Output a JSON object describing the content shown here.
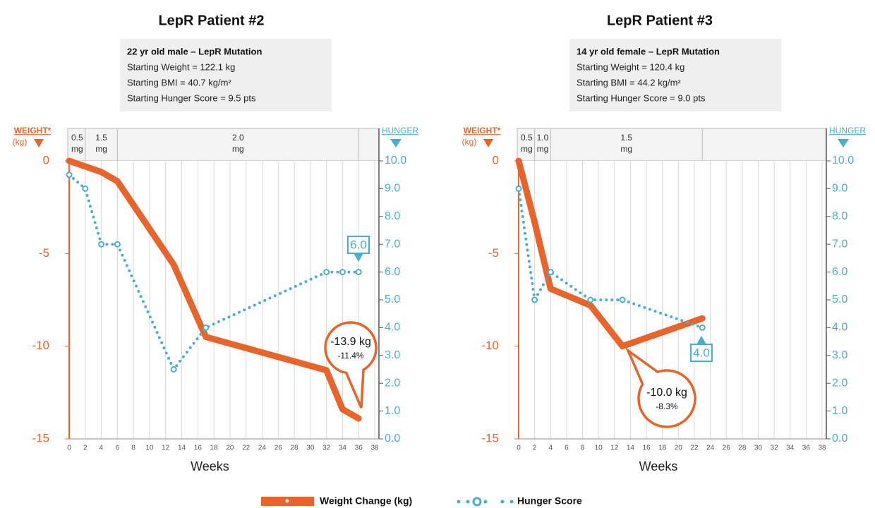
{
  "chart_data": [
    {
      "type": "line",
      "title": "LepR Patient #2",
      "info": {
        "heading": "22 yr old male – LepR Mutation",
        "lines": [
          "Starting Weight = 122.1 kg",
          "Starting BMI = 40.7 kg/m²",
          "Starting Hunger Score = 9.5 pts"
        ]
      },
      "dose_bands": [
        {
          "lines": [
            "0.5",
            "mg"
          ],
          "start": 0,
          "end": 2
        },
        {
          "lines": [
            "1.5",
            "mg"
          ],
          "start": 2,
          "end": 6
        },
        {
          "lines": [
            "2.0",
            "mg"
          ],
          "start": 6,
          "end": 36
        }
      ],
      "y_label": [
        "WEIGHT*",
        "(kg)"
      ],
      "y2_label": "HUNGER",
      "x_label": "Weeks",
      "xlim": [
        0,
        38
      ],
      "xticks": [
        0,
        2,
        4,
        6,
        8,
        10,
        12,
        14,
        16,
        18,
        20,
        22,
        24,
        26,
        28,
        30,
        32,
        34,
        36,
        38
      ],
      "ylim": [
        -15,
        0
      ],
      "yticks": [
        0,
        -5,
        -10,
        -15
      ],
      "y2lim": [
        0,
        10
      ],
      "y2ticks": [
        {
          "value": 10,
          "label": "10.0"
        },
        {
          "value": 9,
          "label": "9.0"
        },
        {
          "value": 8,
          "label": "8.0"
        },
        {
          "value": 7,
          "label": "7.0"
        },
        {
          "value": 6,
          "label": "6.0"
        },
        {
          "value": 5,
          "label": "5.0"
        },
        {
          "value": 4,
          "label": "4.0"
        },
        {
          "value": 3,
          "label": "3.0"
        },
        {
          "value": 2,
          "label": "2.0"
        },
        {
          "value": 1,
          "label": "1.0"
        },
        {
          "value": 0,
          "label": "0.0"
        }
      ],
      "grid": true,
      "x": [
        0,
        2,
        4,
        6,
        13,
        17,
        32,
        34,
        36
      ],
      "series": [
        {
          "name": "Weight Change (kg)",
          "color": "#e8642a",
          "values": [
            0,
            -0.3,
            -0.6,
            -1.1,
            -5.6,
            -9.5,
            -11.3,
            -13.4,
            -13.9
          ]
        },
        {
          "name": "Hunger Score",
          "color": "#4aaed0",
          "axis": "y2",
          "values": [
            9.5,
            9.0,
            7.0,
            7.0,
            2.5,
            4.0,
            6.0,
            6.0,
            6.0
          ]
        }
      ],
      "weight_callout": [
        "-13.9 kg",
        "-11.4%"
      ],
      "hunger_label": "6.0"
    },
    {
      "type": "line",
      "title": "LepR Patient #3",
      "info": {
        "heading": "14 yr old female – LepR Mutation",
        "lines": [
          "Starting Weight = 120.4 kg",
          "Starting BMI = 44.2 kg/m²",
          "Starting Hunger Score = 9.0 pts"
        ]
      },
      "dose_bands": [
        {
          "lines": [
            "0.5",
            "mg"
          ],
          "start": 0,
          "end": 2
        },
        {
          "lines": [
            "1.0",
            "mg"
          ],
          "start": 2,
          "end": 4
        },
        {
          "lines": [
            "1.5",
            "mg"
          ],
          "start": 4,
          "end": 23
        }
      ],
      "y_label": [
        "WEIGHT*",
        "(kg)"
      ],
      "y2_label": "HUNGER",
      "x_label": "Weeks",
      "xlim": [
        0,
        38
      ],
      "xticks": [
        0,
        2,
        4,
        6,
        8,
        10,
        12,
        14,
        16,
        18,
        20,
        22,
        24,
        26,
        28,
        30,
        32,
        34,
        36,
        38
      ],
      "ylim": [
        -15,
        0
      ],
      "yticks": [
        0,
        -5,
        -10,
        -15
      ],
      "y2lim": [
        0,
        10
      ],
      "y2ticks": [
        {
          "value": 10,
          "label": "10.0"
        },
        {
          "value": 9,
          "label": "9.0"
        },
        {
          "value": 8,
          "label": "8.0"
        },
        {
          "value": 7,
          "label": "7.0"
        },
        {
          "value": 6,
          "label": "6.0"
        },
        {
          "value": 5,
          "label": "5.0"
        },
        {
          "value": 4,
          "label": "4.0"
        },
        {
          "value": 3,
          "label": "3.0"
        },
        {
          "value": 2,
          "label": "2.0"
        },
        {
          "value": 1,
          "label": "1.0"
        },
        {
          "value": 0,
          "label": "0.0"
        }
      ],
      "grid": true,
      "x": [
        0,
        2,
        4,
        9,
        13,
        23
      ],
      "series": [
        {
          "color": "#e8642a",
          "values": [
            0,
            -3.3,
            -6.9,
            -7.8,
            -10.0,
            -8.5
          ]
        },
        {
          "color": "#4aaed0",
          "axis": "y2",
          "values": [
            9.0,
            5.0,
            6.0,
            5.0,
            5.0,
            4.0
          ]
        }
      ],
      "weight_callout": [
        "-10.0 kg",
        "-8.3%"
      ],
      "hunger_label": "4.0"
    }
  ]
}
